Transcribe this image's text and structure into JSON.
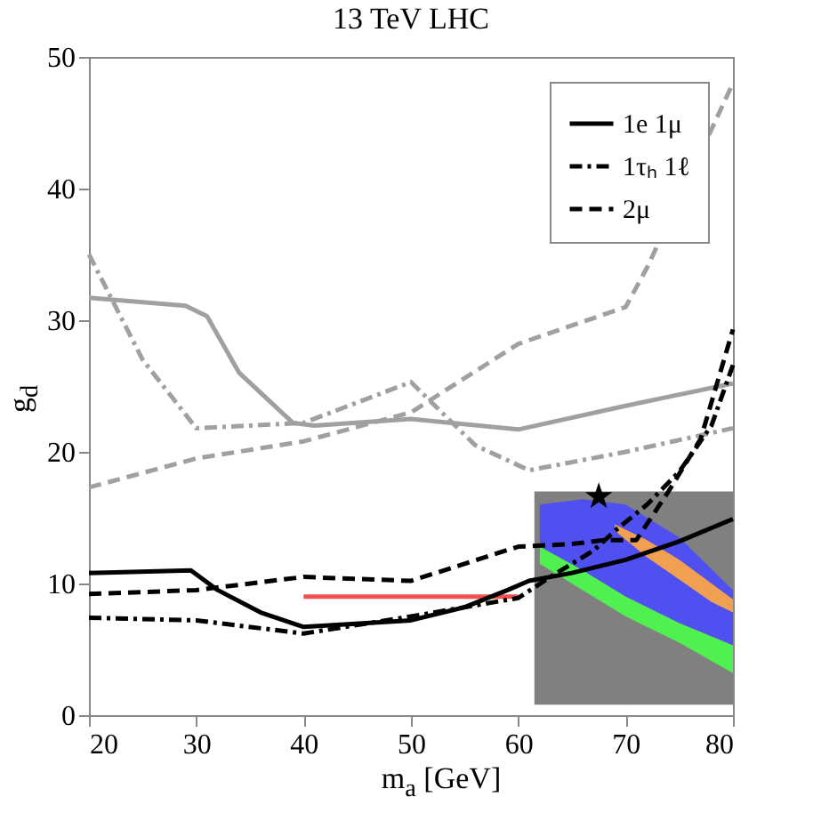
{
  "chart_data": {
    "type": "line",
    "title": "13 TeV LHC",
    "xlabel": "m$_{a}$ [GeV]",
    "ylabel": "g$_{d}$",
    "xlim": [
      20,
      80
    ],
    "ylim": [
      0,
      50
    ],
    "xticks": [
      20,
      30,
      40,
      50,
      60,
      70,
      80
    ],
    "yticks": [
      0,
      10,
      20,
      30,
      40,
      50
    ],
    "grid": false,
    "legend": "top right",
    "series": [
      {
        "type": "area",
        "color": "#808080",
        "x": [
          61.5,
          80
        ],
        "lower": [
          0.8,
          0.8
        ],
        "upper": [
          17,
          17
        ],
        "values": [
          null,
          null
        ]
      },
      {
        "type": "area",
        "color": "#5050f0",
        "x": [
          62,
          66,
          70,
          75,
          80
        ],
        "lower": [
          12.8,
          11,
          9,
          7,
          5.3
        ],
        "upper": [
          16,
          16.4,
          16,
          13.5,
          9.5
        ],
        "values": [
          null,
          null,
          null,
          null,
          null
        ]
      },
      {
        "type": "area",
        "color": "#50f050",
        "x": [
          62,
          66,
          70,
          75,
          80
        ],
        "lower": [
          11.5,
          9.5,
          7.5,
          5.5,
          3.2
        ],
        "upper": [
          12.8,
          11,
          9,
          7,
          5.3
        ],
        "values": [
          null,
          null,
          null,
          null,
          null
        ]
      },
      {
        "type": "area",
        "color": "#f0a050",
        "x": [
          69,
          72,
          75,
          78,
          80
        ],
        "lower": [
          14,
          12,
          10.3,
          8.6,
          7.8
        ],
        "upper": [
          14.5,
          13.3,
          11.8,
          10,
          8.8
        ],
        "values": [
          null,
          null,
          null,
          null,
          null
        ]
      },
      {
        "type": "line",
        "color": "#a0a0a0",
        "line_style": "dashed",
        "x": [
          20,
          30,
          40,
          50,
          60,
          70,
          72,
          80
        ],
        "values": [
          17.3,
          19.5,
          20.8,
          23,
          28.2,
          31,
          34,
          48
        ]
      },
      {
        "type": "line",
        "color": "#a0a0a0",
        "line_style": "solid",
        "x": [
          20,
          29,
          31,
          34,
          39,
          41,
          50,
          60,
          70,
          80
        ],
        "values": [
          31.7,
          31.1,
          30.3,
          26,
          22.2,
          22,
          22.5,
          21.7,
          23.5,
          25.2
        ]
      },
      {
        "type": "line",
        "color": "#a0a0a0",
        "line_style": "dashdot",
        "x": [
          20,
          25,
          30,
          40,
          50,
          56,
          61,
          70,
          80
        ],
        "values": [
          35,
          27,
          21.8,
          22.2,
          25.3,
          20.5,
          18.6,
          20,
          21.8
        ]
      },
      {
        "type": "line",
        "color": "#f05050",
        "line_style": "solid",
        "x": [
          40,
          60
        ],
        "values": [
          9,
          9
        ]
      },
      {
        "type": "line",
        "name": "1e 1μ",
        "color": "#000000",
        "line_style": "solid",
        "x": [
          20,
          29.5,
          32,
          36,
          40,
          50,
          55,
          59,
          61,
          65,
          70,
          75,
          80
        ],
        "values": [
          10.8,
          11,
          9.5,
          7.8,
          6.7,
          7.2,
          8.2,
          9.5,
          10.2,
          10.8,
          11.8,
          13.2,
          14.9
        ]
      },
      {
        "type": "line",
        "name": "1τₕ 1ℓ",
        "color": "#000000",
        "line_style": "dashdot",
        "x": [
          20,
          30,
          40,
          50,
          60,
          63,
          67,
          69,
          72,
          75,
          78,
          80
        ],
        "values": [
          7.4,
          7.2,
          6.2,
          7.5,
          8.9,
          10.5,
          12.5,
          14,
          16,
          18.5,
          22,
          26.6
        ]
      },
      {
        "type": "line",
        "name": "2μ",
        "color": "#000000",
        "line_style": "dashed",
        "x": [
          20,
          30,
          40,
          50,
          60,
          65,
          68,
          71,
          74,
          77,
          80
        ],
        "values": [
          9.2,
          9.5,
          10.5,
          10.2,
          12.8,
          13,
          13.3,
          13.3,
          17,
          21,
          29.3
        ]
      },
      {
        "type": "scatter",
        "marker": "star",
        "color": "#000000",
        "x": [
          67.5
        ],
        "values": [
          16.6
        ]
      }
    ]
  }
}
